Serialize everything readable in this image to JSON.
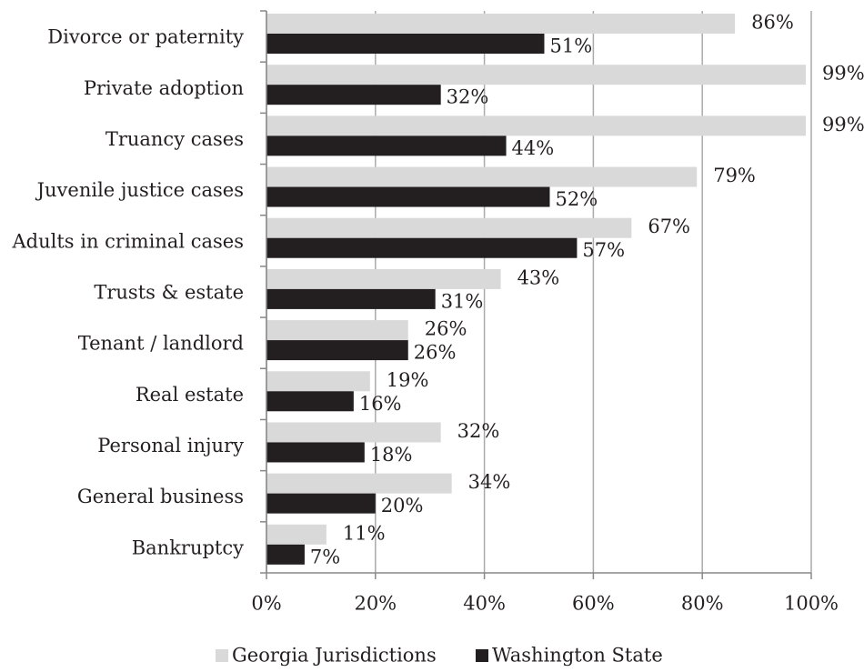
{
  "chart_data": {
    "type": "bar",
    "orientation": "horizontal",
    "categories": [
      "Divorce or paternity",
      "Private adoption",
      "Truancy cases",
      "Juvenile justice cases",
      "Adults in criminal cases",
      "Trusts & estate",
      "Tenant / landlord",
      "Real estate",
      "Personal injury",
      "General business",
      "Bankruptcy"
    ],
    "series": [
      {
        "name": "Georgia Jurisdictions",
        "color": "#d9d9d9",
        "values": [
          86,
          99,
          99,
          79,
          67,
          43,
          26,
          19,
          32,
          34,
          11
        ],
        "value_labels": [
          "86%",
          "99%",
          "99%",
          "79%",
          "67%",
          "43%",
          "26%",
          "19%",
          "32%",
          "34%",
          "11%"
        ]
      },
      {
        "name": "Washington State",
        "color": "#231f20",
        "values": [
          51,
          32,
          44,
          52,
          57,
          31,
          26,
          16,
          18,
          20,
          7
        ],
        "value_labels": [
          "51%",
          "32%",
          "44%",
          "52%",
          "57%",
          "31%",
          "26%",
          "16%",
          "18%",
          "20%",
          "7%"
        ]
      }
    ],
    "xlim": [
      0,
      100
    ],
    "xticks": [
      {
        "value": 0,
        "label": "0%"
      },
      {
        "value": 20,
        "label": "20%"
      },
      {
        "value": 40,
        "label": "40%"
      },
      {
        "value": 60,
        "label": "60%"
      },
      {
        "value": 80,
        "label": "80%"
      },
      {
        "value": 100,
        "label": "100%"
      }
    ],
    "grid": true,
    "legend": "bottom"
  }
}
